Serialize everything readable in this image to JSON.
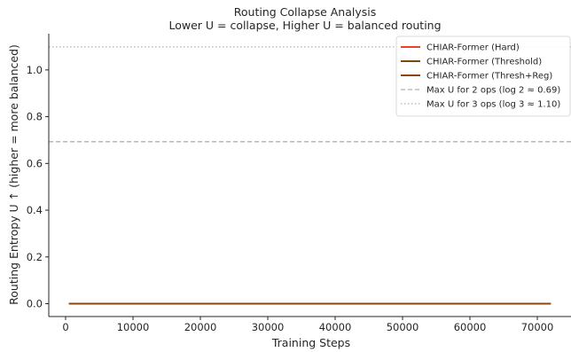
{
  "chart_data": {
    "type": "line",
    "title": "Routing Collapse Analysis",
    "subtitle": "Lower U = collapse, Higher U = balanced routing",
    "xlabel": "Training Steps",
    "ylabel": "Routing Entropy U ↑  (higher = more balanced)",
    "xlim": [
      -2500,
      75000
    ],
    "ylim": [
      -0.055,
      1.155
    ],
    "xticks": [
      0,
      10000,
      20000,
      30000,
      40000,
      50000,
      60000,
      70000
    ],
    "yticks": [
      0.0,
      0.2,
      0.4,
      0.6,
      0.8,
      1.0
    ],
    "xtick_labels": [
      "0",
      "10000",
      "20000",
      "30000",
      "40000",
      "50000",
      "60000",
      "70000"
    ],
    "ytick_labels": [
      "0.0",
      "0.2",
      "0.4",
      "0.6",
      "0.8",
      "1.0"
    ],
    "grid": false,
    "legend_position": "top-right",
    "series": [
      {
        "name": "CHIAR-Former (Hard)",
        "color": "#e8412c",
        "style": "solid",
        "x": [
          500,
          72000
        ],
        "y": [
          0.0,
          0.0
        ]
      },
      {
        "name": "CHIAR-Former (Threshold)",
        "color": "#7a4a0e",
        "style": "solid",
        "x": [
          500,
          72000
        ],
        "y": [
          0.0,
          0.0
        ]
      },
      {
        "name": "CHIAR-Former (Thresh+Reg)",
        "color": "#8b4513",
        "style": "solid",
        "x": [
          500,
          72000
        ],
        "y": [
          0.0,
          0.0
        ]
      }
    ],
    "reference_lines": [
      {
        "name": "Max U for 2 ops (log 2 ≈ 0.69)",
        "y": 0.693,
        "color": "#b0b0b0",
        "style": "dashed"
      },
      {
        "name": "Max U for 3 ops (log 3 ≈ 1.10)",
        "y": 1.0986,
        "color": "#b0b0b0",
        "style": "dotted"
      }
    ]
  }
}
